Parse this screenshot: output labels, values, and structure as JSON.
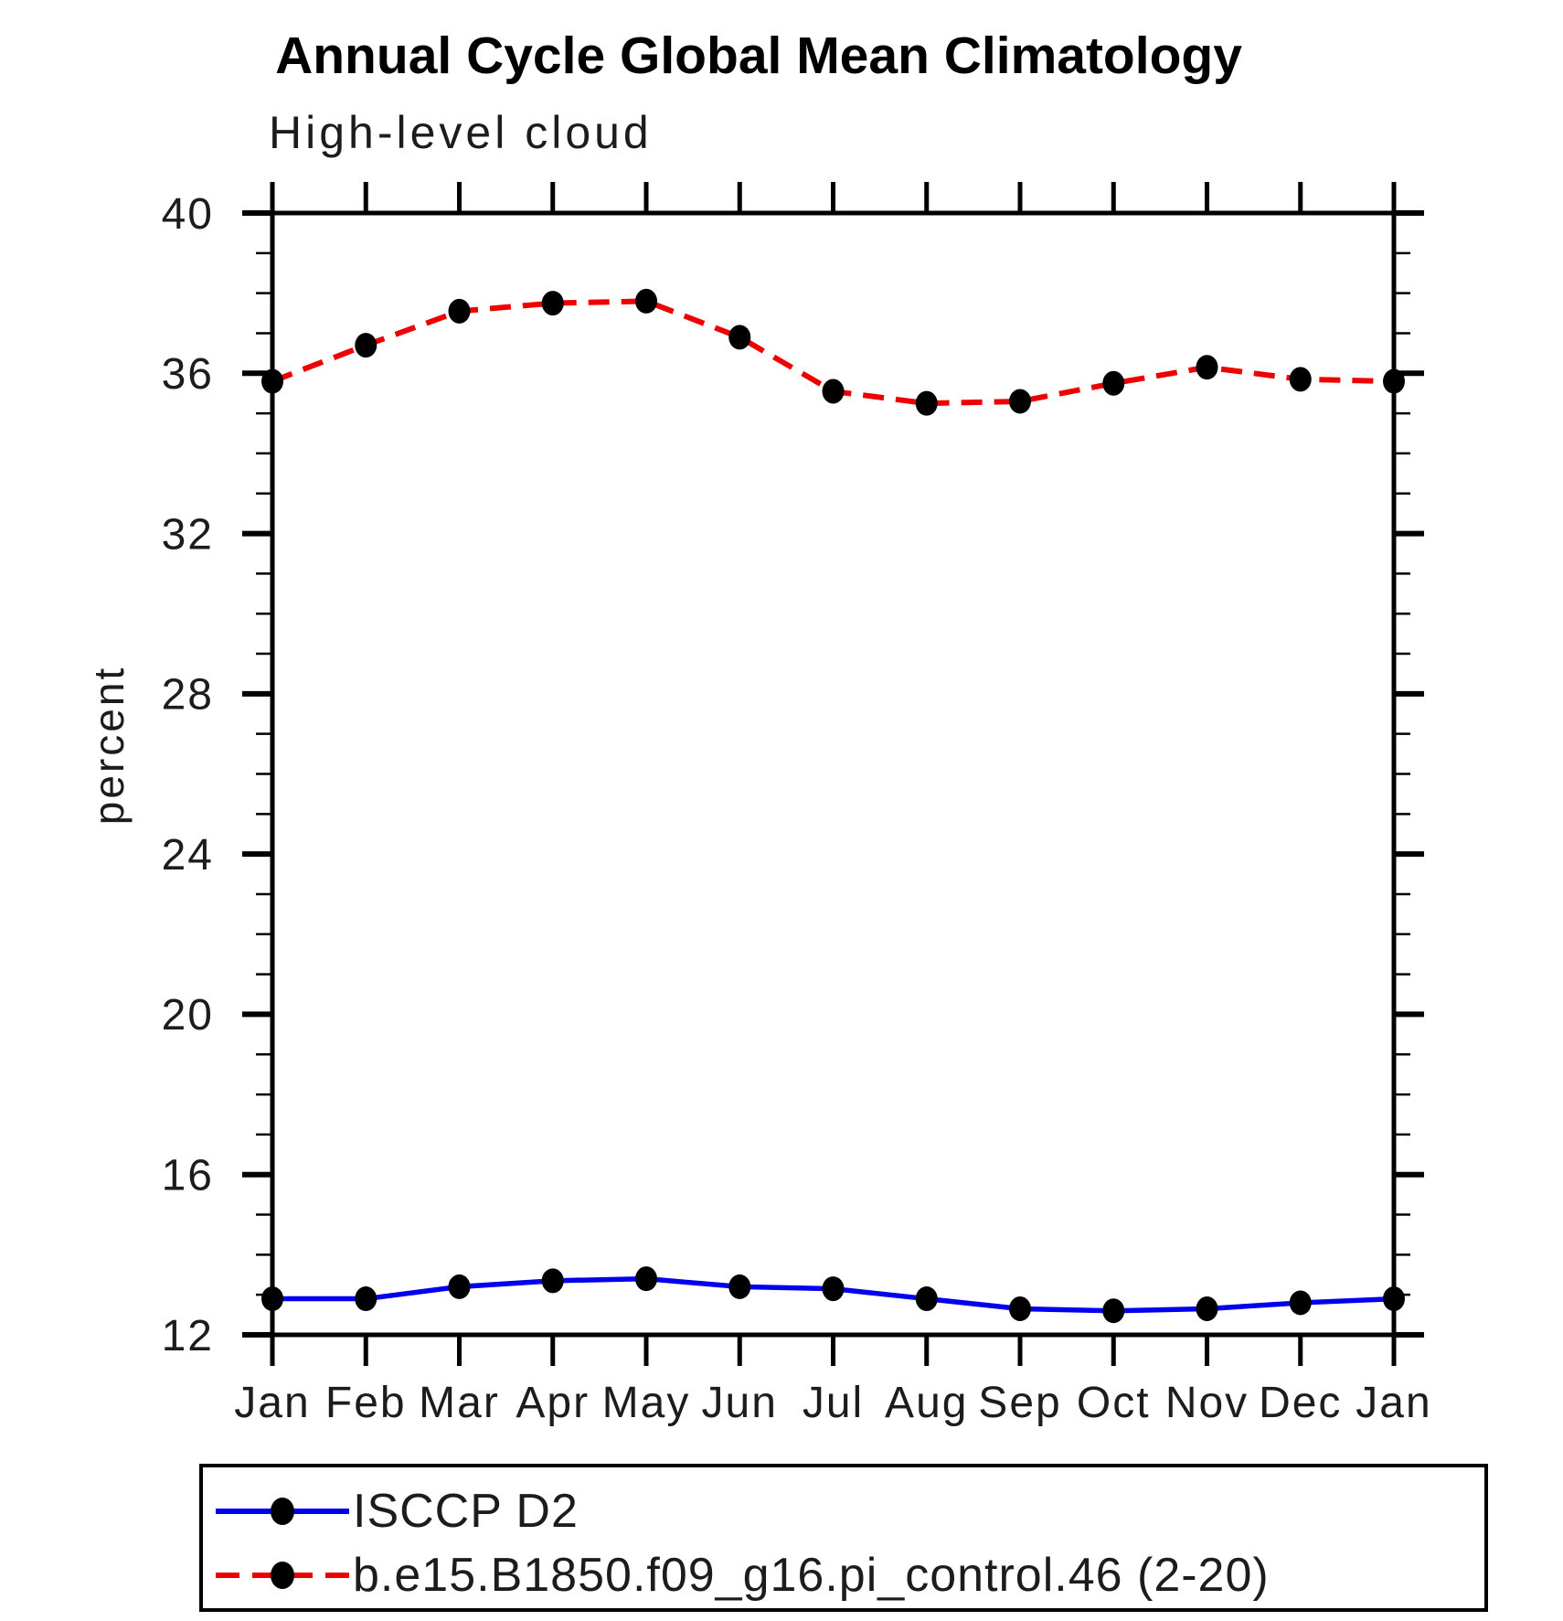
{
  "header": {
    "title": "Annual Cycle Global Mean Climatology",
    "subtitle": "High-level cloud"
  },
  "chart_data": {
    "type": "line",
    "title": "Annual Cycle Global Mean Climatology",
    "subtitle": "High-level cloud",
    "xlabel": "",
    "ylabel": "percent",
    "ylim": [
      12,
      40
    ],
    "y_major_ticks": [
      12,
      16,
      20,
      24,
      28,
      32,
      36,
      40
    ],
    "y_minor_step": 1,
    "grid": false,
    "legend_position": "bottom",
    "categories": [
      "Jan",
      "Feb",
      "Mar",
      "Apr",
      "May",
      "Jun",
      "Jul",
      "Aug",
      "Sep",
      "Oct",
      "Nov",
      "Dec",
      "Jan"
    ],
    "series": [
      {
        "name": "ISCCP D2",
        "color": "#0000ee",
        "line_style": "solid",
        "marker": "black-dot",
        "values": [
          12.9,
          12.9,
          13.2,
          13.35,
          13.4,
          13.2,
          13.15,
          12.9,
          12.65,
          12.6,
          12.65,
          12.8,
          12.9
        ]
      },
      {
        "name": "b.e15.B1850.f09_g16.pi_control.46 (2-20)",
        "color": "#ee0000",
        "line_style": "dashed",
        "marker": "black-dot",
        "values": [
          35.8,
          36.7,
          37.55,
          37.75,
          37.8,
          36.9,
          35.55,
          35.25,
          35.3,
          35.75,
          36.15,
          35.85,
          35.8
        ]
      }
    ]
  },
  "colors": {
    "axis": "#000000",
    "marker": "#000000",
    "text": "#1c1c1c",
    "background": "#ffffff"
  }
}
